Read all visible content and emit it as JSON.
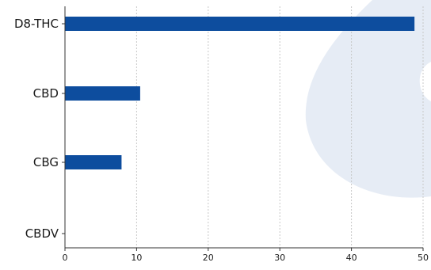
{
  "chart_data": {
    "type": "bar",
    "orientation": "horizontal",
    "categories": [
      "D8-THC",
      "CBD",
      "CBG",
      "CBDV"
    ],
    "values": [
      48.8,
      10.5,
      7.9,
      0
    ],
    "xlim": [
      0,
      50
    ],
    "xticks": [
      "0",
      "10",
      "20",
      "30",
      "40",
      "50"
    ],
    "title": "",
    "xlabel": "",
    "ylabel": "",
    "grid": "vertical dotted",
    "bar_color": "#0d4d9e",
    "legend": "none"
  },
  "colors": {
    "watermark": "#e6ecf5",
    "grid": "#c8c8c8",
    "axis": "#333333"
  }
}
